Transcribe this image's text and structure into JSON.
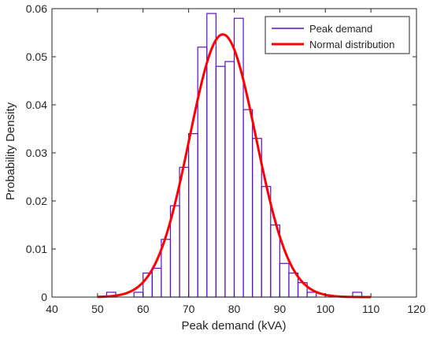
{
  "chart_data": {
    "type": "bar",
    "title": "",
    "xlabel": "Peak demand (kVA)",
    "ylabel": "Probability Density",
    "xlim": [
      40,
      120
    ],
    "ylim": [
      0,
      0.06
    ],
    "xticks": [
      40,
      50,
      60,
      70,
      80,
      90,
      100,
      110,
      120
    ],
    "xtick_labels": [
      "40",
      "50",
      "60",
      "70",
      "80",
      "90",
      "100",
      "110",
      "120"
    ],
    "yticks": [
      0,
      0.01,
      0.02,
      0.03,
      0.04,
      0.05,
      0.06
    ],
    "ytick_labels": [
      "0",
      "0.01",
      "0.02",
      "0.03",
      "0.04",
      "0.05",
      "0.06"
    ],
    "grid": false,
    "legend_position": "top-right",
    "series": [
      {
        "name": "Peak demand",
        "kind": "histogram",
        "color": "#5a0fc8",
        "bin_edges": [
          50,
          52,
          54,
          56,
          58,
          60,
          62,
          64,
          66,
          68,
          70,
          72,
          74,
          76,
          78,
          80,
          82,
          84,
          86,
          88,
          90,
          92,
          94,
          96,
          98,
          100,
          102,
          104,
          106,
          108,
          110
        ],
        "values": [
          0,
          0.001,
          0,
          0,
          0.001,
          0.005,
          0.006,
          0.012,
          0.019,
          0.027,
          0.034,
          0.052,
          0.059,
          0.048,
          0.049,
          0.058,
          0.039,
          0.033,
          0.023,
          0.015,
          0.007,
          0.005,
          0.003,
          0.001,
          0,
          0,
          0,
          0,
          0.001,
          0
        ]
      },
      {
        "name": "Normal distribution",
        "kind": "line",
        "color": "#ff0000",
        "mean": 77.5,
        "std": 7.3,
        "x_range": [
          50,
          110
        ]
      }
    ]
  }
}
